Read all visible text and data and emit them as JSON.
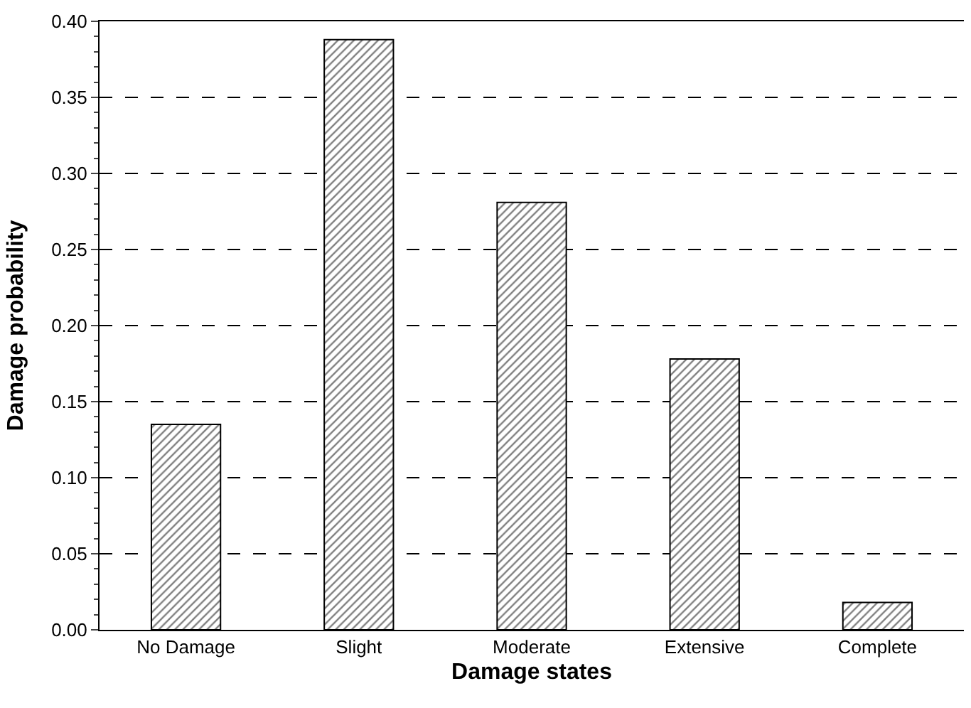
{
  "chart_data": {
    "type": "bar",
    "xlabel": "Damage states",
    "ylabel": "Damage probability",
    "categories": [
      "No Damage",
      "Slight",
      "Moderate",
      "Extensive",
      "Complete"
    ],
    "values": [
      0.135,
      0.388,
      0.281,
      0.178,
      0.018
    ],
    "color": "#000000",
    "ylim": [
      0,
      0.4
    ],
    "yticks": [
      {
        "value": 0,
        "label": "0.00"
      },
      {
        "value": 0.05,
        "label": "0.05"
      },
      {
        "value": 0.1,
        "label": "0.10"
      },
      {
        "value": 0.15,
        "label": "0.15"
      },
      {
        "value": 0.2,
        "label": "0.20"
      },
      {
        "value": 0.25,
        "label": "0.25"
      },
      {
        "value": 0.3,
        "label": "0.30"
      },
      {
        "value": 0.35,
        "label": "0.35"
      },
      {
        "value": 0.4,
        "label": "0.40"
      }
    ],
    "grid": "y",
    "line_style": "dashed"
  }
}
